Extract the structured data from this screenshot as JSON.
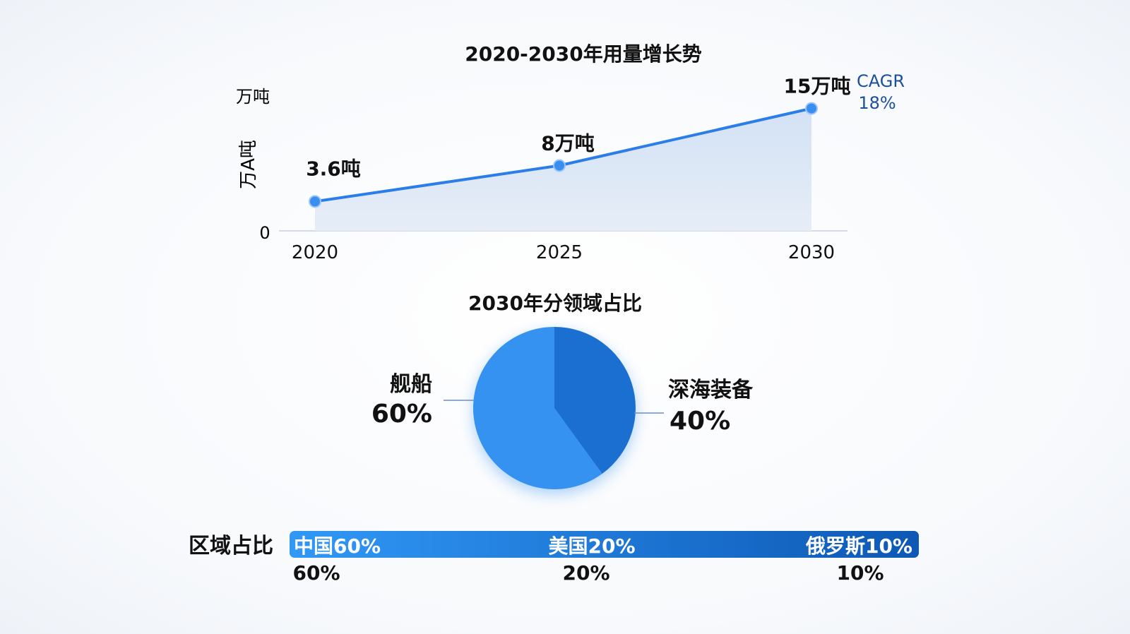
{
  "chart_data": [
    {
      "type": "area",
      "title": "2020-2030年用量增长势",
      "ylabel_top": "万吨",
      "ylabel": "万A吨",
      "y_tick_labels": [
        "0"
      ],
      "categories": [
        "2020",
        "2025",
        "2030"
      ],
      "values": [
        3.6,
        8,
        15
      ],
      "data_labels": [
        "3.6吨",
        "8万吨",
        "15万吨"
      ],
      "annotation": {
        "line1": "CAGR",
        "line2": "18%"
      },
      "ylim": [
        0,
        16
      ],
      "grid": false,
      "colors": {
        "line": "#2b7de9",
        "area": "#dce7f6",
        "point": "#3a8ef0",
        "annotation": "#1d4f9c"
      }
    },
    {
      "type": "pie",
      "title": "2030年分领域占比",
      "slices": [
        {
          "label": "舰船",
          "value": 60,
          "value_label": "60%",
          "color": "#3592f0"
        },
        {
          "label": "深海装备",
          "value": 40,
          "value_label": "40%",
          "color": "#1a6fd0"
        }
      ]
    },
    {
      "type": "bar",
      "orientation": "horizontal-stacked-strip",
      "label": "区域占比",
      "segments": [
        {
          "name": "中国",
          "value": 60,
          "inner_label": "中国60%",
          "below_label": "60%"
        },
        {
          "name": "美国",
          "value": 20,
          "inner_label": "美国20%",
          "below_label": "20%"
        },
        {
          "name": "俄罗斯",
          "value": 10,
          "inner_label": "俄罗斯10%",
          "below_label": "10%"
        }
      ],
      "colors": {
        "start": "#3198f6",
        "end": "#0d58b5"
      }
    }
  ]
}
